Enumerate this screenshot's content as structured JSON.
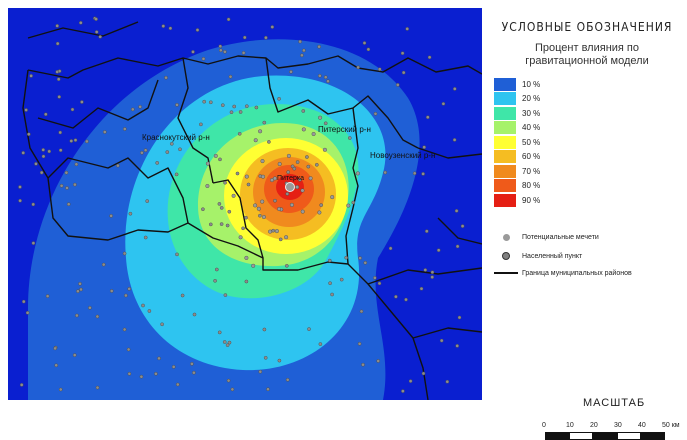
{
  "legend": {
    "title": "УСЛОВНЫЕ ОБОЗНАЧЕНИЯ",
    "subtitle_line1": "Процент влияния по",
    "subtitle_line2": "гравитационной модели",
    "scale": [
      {
        "label": "10 %",
        "color": "#1f5fd6"
      },
      {
        "label": "20 %",
        "color": "#2ec4f0"
      },
      {
        "label": "30 %",
        "color": "#3fe6a8"
      },
      {
        "label": "40 %",
        "color": "#a6f26a"
      },
      {
        "label": "50 %",
        "color": "#ffff33"
      },
      {
        "label": "60 %",
        "color": "#f5bd22"
      },
      {
        "label": "70 %",
        "color": "#f08a1e"
      },
      {
        "label": "80 %",
        "color": "#ef5a1a"
      },
      {
        "label": "90 %",
        "color": "#e51f14"
      }
    ],
    "symbols": {
      "mosque": "Потенциальные мечети",
      "settlement": "Населенный пункт",
      "border": "Граница муниципальных районов"
    }
  },
  "map": {
    "labels": {
      "krasnokutsky": "Краснокутский р-н",
      "pitersky": "Питерский р-н",
      "novouzensky": "Новоузенский р-н",
      "piterka": "Питерка"
    },
    "background_color": "#0a1fd0"
  },
  "scalebar": {
    "title": "МАСШТАБ",
    "ticks": [
      "0",
      "10",
      "20",
      "30",
      "40",
      "50 км"
    ]
  }
}
